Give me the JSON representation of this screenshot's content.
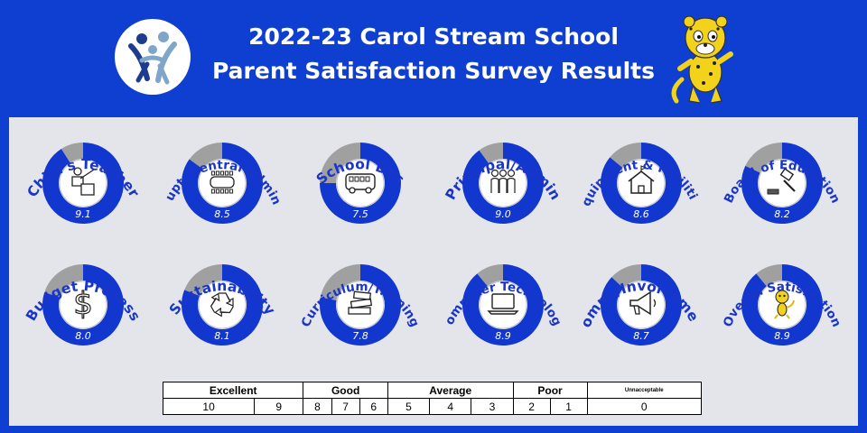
{
  "header": {
    "title_line1": "2022-23 Carol Stream School",
    "title_line2": "Parent Satisfaction Survey Results"
  },
  "colors": {
    "background": "#0f3fd0",
    "panel": "#e3e5ea",
    "score_fill": "#1237cf",
    "remainder_fill": "#a0a0a0",
    "label_text": "#1a36c8"
  },
  "chart_data": {
    "type": "donut",
    "scale_max": 10,
    "items": [
      {
        "label": "Child's Teacher",
        "value": 9.1,
        "value_label": "9.1",
        "icon": "teacher-icon"
      },
      {
        "label": "Supt./Central Admin.",
        "value": 8.5,
        "value_label": "8.5",
        "icon": "conference-table-icon"
      },
      {
        "label": "School Bus",
        "value": 7.5,
        "value_label": "7.5",
        "icon": "bus-icon"
      },
      {
        "label": "Principal/Admin",
        "value": 9.0,
        "value_label": "9.0",
        "icon": "people-group-icon"
      },
      {
        "label": "Equipment & Facilities",
        "value": 8.6,
        "value_label": "8.6",
        "icon": "school-building-icon"
      },
      {
        "label": "Board of Education",
        "value": 8.2,
        "value_label": "8.2",
        "icon": "gavel-icon"
      },
      {
        "label": "Budget Process",
        "value": 8.0,
        "value_label": "8.0",
        "icon": "dollar-icon"
      },
      {
        "label": "Sustainability",
        "value": 8.1,
        "value_label": "8.1",
        "icon": "recycle-icon"
      },
      {
        "label": "Curriculum/Training",
        "value": 7.8,
        "value_label": "7.8",
        "icon": "books-icon"
      },
      {
        "label": "Computer Technology",
        "value": 8.9,
        "value_label": "8.9",
        "icon": "laptop-icon"
      },
      {
        "label": "Comm./Involvement",
        "value": 8.7,
        "value_label": "8.7",
        "icon": "megaphone-icon"
      },
      {
        "label": "Overall Satisfaction",
        "value": 8.9,
        "value_label": "8.9",
        "icon": "mascot-icon"
      }
    ]
  },
  "legend": {
    "bands": [
      {
        "label": "Excellent",
        "span": 2
      },
      {
        "label": "Good",
        "span": 3
      },
      {
        "label": "Average",
        "span": 3
      },
      {
        "label": "Poor",
        "span": 2
      },
      {
        "label": "Unnacceptable",
        "span": 1
      }
    ],
    "scores": [
      "10",
      "9",
      "8",
      "7",
      "6",
      "5",
      "4",
      "3",
      "2",
      "1",
      "0"
    ]
  }
}
